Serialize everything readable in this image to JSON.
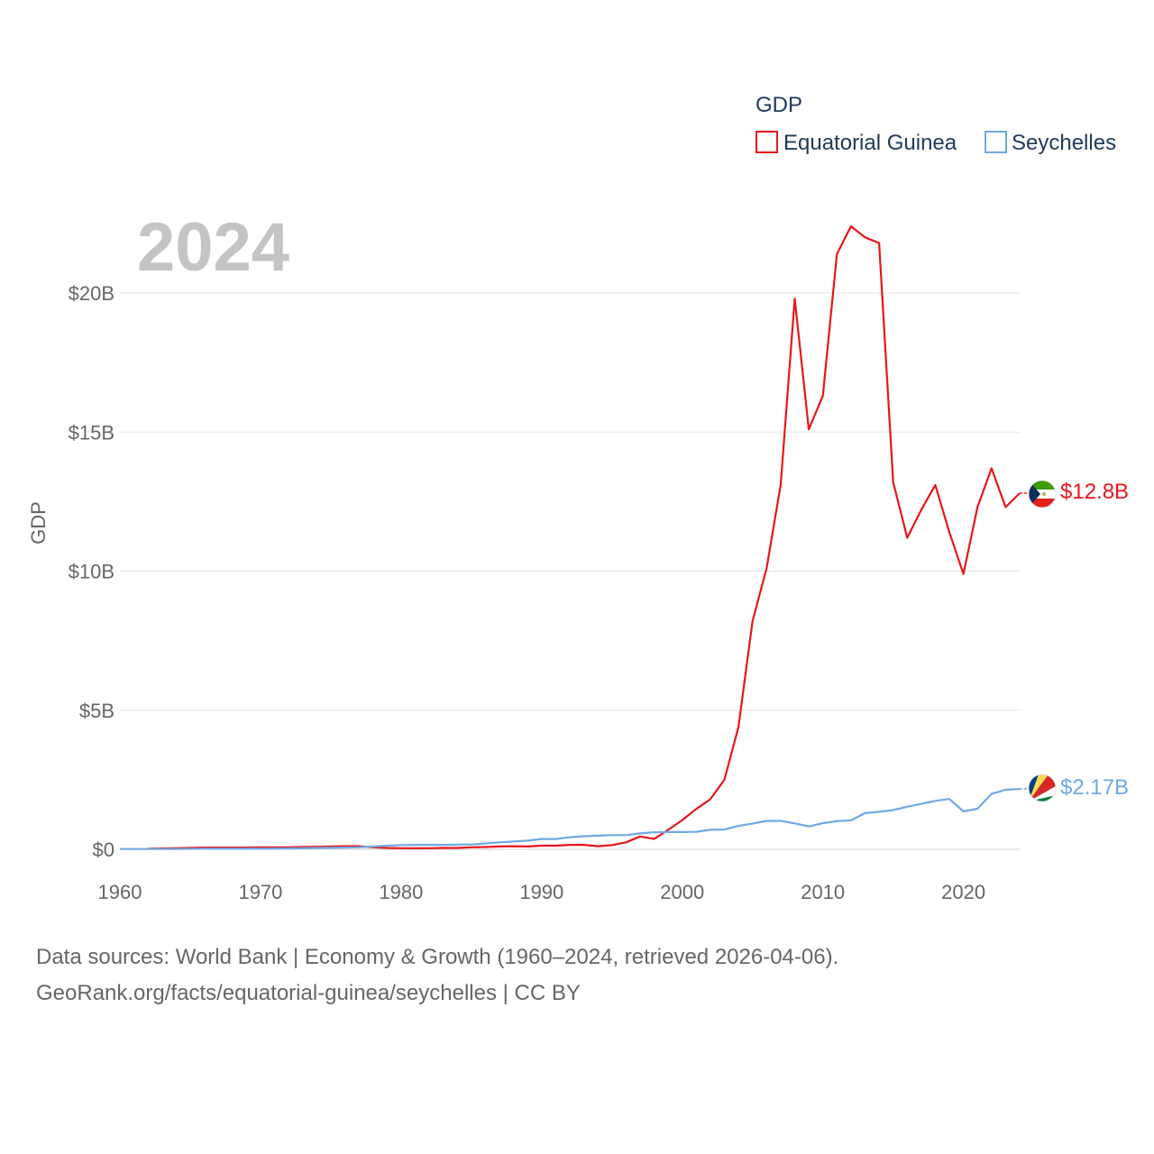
{
  "legend": {
    "title": "GDP",
    "items": [
      "Equatorial Guinea",
      "Seychelles"
    ]
  },
  "year_label": "2024",
  "y_axis_title": "GDP",
  "end_labels": {
    "equatorial_guinea": "$12.8B",
    "seychelles": "$2.17B"
  },
  "flags": {
    "equatorial_guinea": "equatorial-guinea-flag-icon",
    "seychelles": "seychelles-flag-icon"
  },
  "source": {
    "line1": "Data sources: World Bank | Economy & Growth (1960–2024, retrieved 2026-04-06).",
    "line2": "GeoRank.org/facts/equatorial-guinea/seychelles | CC BY"
  },
  "colors": {
    "equatorial_guinea": "#e8161b",
    "seychelles": "#6ea9e4",
    "grid": "#e6e6e6"
  },
  "chart_data": {
    "type": "line",
    "title": "GDP",
    "xlabel": "",
    "ylabel": "GDP",
    "xlim": [
      1960,
      2024
    ],
    "ylim": [
      0,
      20
    ],
    "y_unit": "billion USD",
    "x_ticks": [
      1960,
      1970,
      1980,
      1990,
      2000,
      2010,
      2020
    ],
    "y_ticks": [
      {
        "value": 0,
        "label": "$0"
      },
      {
        "value": 5,
        "label": "$5B"
      },
      {
        "value": 10,
        "label": "$10B"
      },
      {
        "value": 15,
        "label": "$15B"
      },
      {
        "value": 20,
        "label": "$20B"
      }
    ],
    "series": [
      {
        "name": "Equatorial Guinea",
        "color": "#e8161b",
        "points": [
          [
            1962,
            0.02
          ],
          [
            1963,
            0.03
          ],
          [
            1964,
            0.04
          ],
          [
            1965,
            0.05
          ],
          [
            1966,
            0.06
          ],
          [
            1967,
            0.06
          ],
          [
            1968,
            0.06
          ],
          [
            1969,
            0.06
          ],
          [
            1970,
            0.07
          ],
          [
            1971,
            0.07
          ],
          [
            1972,
            0.07
          ],
          [
            1973,
            0.08
          ],
          [
            1974,
            0.09
          ],
          [
            1975,
            0.1
          ],
          [
            1976,
            0.11
          ],
          [
            1977,
            0.11
          ],
          [
            1978,
            0.07
          ],
          [
            1979,
            0.05
          ],
          [
            1980,
            0.04
          ],
          [
            1981,
            0.04
          ],
          [
            1982,
            0.04
          ],
          [
            1983,
            0.05
          ],
          [
            1984,
            0.05
          ],
          [
            1985,
            0.07
          ],
          [
            1986,
            0.08
          ],
          [
            1987,
            0.1
          ],
          [
            1988,
            0.11
          ],
          [
            1989,
            0.1
          ],
          [
            1990,
            0.13
          ],
          [
            1991,
            0.13
          ],
          [
            1992,
            0.16
          ],
          [
            1993,
            0.16
          ],
          [
            1994,
            0.11
          ],
          [
            1995,
            0.15
          ],
          [
            1996,
            0.25
          ],
          [
            1997,
            0.46
          ],
          [
            1998,
            0.37
          ],
          [
            1999,
            0.7
          ],
          [
            2000,
            1.05
          ],
          [
            2001,
            1.45
          ],
          [
            2002,
            1.8
          ],
          [
            2003,
            2.5
          ],
          [
            2004,
            4.4
          ],
          [
            2005,
            8.2
          ],
          [
            2006,
            10.1
          ],
          [
            2007,
            13.1
          ],
          [
            2008,
            19.8
          ],
          [
            2009,
            15.1
          ],
          [
            2010,
            16.3
          ],
          [
            2011,
            21.4
          ],
          [
            2012,
            22.4
          ],
          [
            2013,
            22.0
          ],
          [
            2014,
            21.8
          ],
          [
            2015,
            13.2
          ],
          [
            2016,
            11.2
          ],
          [
            2017,
            12.2
          ],
          [
            2018,
            13.1
          ],
          [
            2019,
            11.4
          ],
          [
            2020,
            9.9
          ],
          [
            2021,
            12.3
          ],
          [
            2022,
            13.7
          ],
          [
            2023,
            12.3
          ],
          [
            2024,
            12.8
          ]
        ]
      },
      {
        "name": "Seychelles",
        "color": "#6ea9e4",
        "points": [
          [
            1960,
            0.01
          ],
          [
            1962,
            0.01
          ],
          [
            1964,
            0.01
          ],
          [
            1966,
            0.02
          ],
          [
            1968,
            0.02
          ],
          [
            1970,
            0.02
          ],
          [
            1972,
            0.03
          ],
          [
            1974,
            0.05
          ],
          [
            1976,
            0.06
          ],
          [
            1977,
            0.07
          ],
          [
            1978,
            0.1
          ],
          [
            1979,
            0.13
          ],
          [
            1980,
            0.15
          ],
          [
            1981,
            0.16
          ],
          [
            1982,
            0.16
          ],
          [
            1983,
            0.16
          ],
          [
            1984,
            0.17
          ],
          [
            1985,
            0.17
          ],
          [
            1986,
            0.21
          ],
          [
            1987,
            0.25
          ],
          [
            1988,
            0.28
          ],
          [
            1989,
            0.31
          ],
          [
            1990,
            0.37
          ],
          [
            1991,
            0.37
          ],
          [
            1992,
            0.43
          ],
          [
            1993,
            0.47
          ],
          [
            1994,
            0.49
          ],
          [
            1995,
            0.51
          ],
          [
            1996,
            0.51
          ],
          [
            1997,
            0.57
          ],
          [
            1998,
            0.61
          ],
          [
            1999,
            0.62
          ],
          [
            2000,
            0.62
          ],
          [
            2001,
            0.63
          ],
          [
            2002,
            0.7
          ],
          [
            2003,
            0.71
          ],
          [
            2004,
            0.84
          ],
          [
            2005,
            0.92
          ],
          [
            2006,
            1.02
          ],
          [
            2007,
            1.02
          ],
          [
            2008,
            0.93
          ],
          [
            2009,
            0.82
          ],
          [
            2010,
            0.94
          ],
          [
            2011,
            1.01
          ],
          [
            2012,
            1.04
          ],
          [
            2013,
            1.3
          ],
          [
            2014,
            1.35
          ],
          [
            2015,
            1.41
          ],
          [
            2016,
            1.53
          ],
          [
            2017,
            1.63
          ],
          [
            2018,
            1.74
          ],
          [
            2019,
            1.81
          ],
          [
            2020,
            1.36
          ],
          [
            2021,
            1.46
          ],
          [
            2022,
            1.99
          ],
          [
            2023,
            2.14
          ],
          [
            2024,
            2.17
          ]
        ]
      }
    ],
    "end_values": [
      {
        "name": "Equatorial Guinea",
        "value": 12.8,
        "label": "$12.8B"
      },
      {
        "name": "Seychelles",
        "value": 2.17,
        "label": "$2.17B"
      }
    ],
    "legend_position": "top-right",
    "grid": true
  }
}
